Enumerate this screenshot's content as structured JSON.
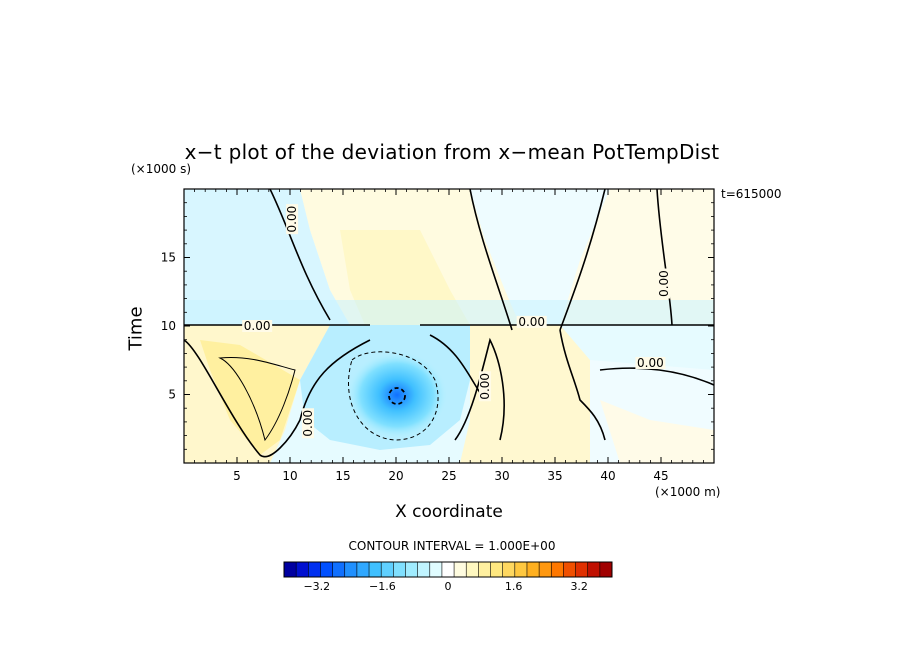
{
  "chart_data": {
    "type": "heatmap",
    "title": "x−t plot of the deviation from x−mean PotTempDist",
    "xlabel": "X coordinate",
    "ylabel": "Time",
    "x_unit": "(×1000 m)",
    "y_unit": "(×1000 s)",
    "time_label": "t=615000",
    "xlim": [
      0,
      50
    ],
    "ylim": [
      0,
      20
    ],
    "x_ticks": [
      5,
      10,
      15,
      20,
      25,
      30,
      35,
      40,
      45
    ],
    "y_ticks": [
      5,
      10,
      15
    ],
    "contour_interval_text": "CONTOUR INTERVAL = 1.000E+00",
    "contour_labels": [
      {
        "text": "0.00",
        "x": 10.2,
        "y": 17.8
      },
      {
        "text": "0.00",
        "x": 6.9,
        "y": 10.0
      },
      {
        "text": "0.00",
        "x": 32.8,
        "y": 10.3
      },
      {
        "text": "0.00",
        "x": 45.3,
        "y": 13.1
      },
      {
        "text": "0.00",
        "x": 44.0,
        "y": 7.3
      },
      {
        "text": "0.00",
        "x": 28.4,
        "y": 5.6
      },
      {
        "text": "0.00",
        "x": 11.7,
        "y": 2.9
      }
    ],
    "features": [
      {
        "name": "cold anomaly",
        "x": 20,
        "y": 5,
        "value": -2.5
      },
      {
        "name": "warm band upper center",
        "x": 20,
        "y": 15,
        "value": 0.5
      },
      {
        "name": "warm region lower left",
        "x": 7,
        "y": 4,
        "value": 0.8
      },
      {
        "name": "warm region lower right",
        "x": 34,
        "y": 4,
        "value": 0.5
      }
    ],
    "colorbar": {
      "range": [
        -4,
        4
      ],
      "tick_labels": [
        "−3.2",
        "−1.6",
        "0",
        "1.6",
        "3.2"
      ],
      "tick_values": [
        -3.2,
        -1.6,
        0,
        1.6,
        3.2
      ],
      "colors": [
        "#0000a0",
        "#0010d0",
        "#0030f0",
        "#0050ff",
        "#1070ff",
        "#2090ff",
        "#30a8ff",
        "#40c0ff",
        "#60d0ff",
        "#80e0ff",
        "#a0ecff",
        "#c0f4ff",
        "#e0fcff",
        "#ffffff",
        "#fffce0",
        "#fff8c0",
        "#fff0a0",
        "#ffe880",
        "#ffd860",
        "#ffc840",
        "#ffb020",
        "#ff9810",
        "#ff7800",
        "#f05000",
        "#e03000",
        "#c01000",
        "#a00000"
      ]
    }
  }
}
